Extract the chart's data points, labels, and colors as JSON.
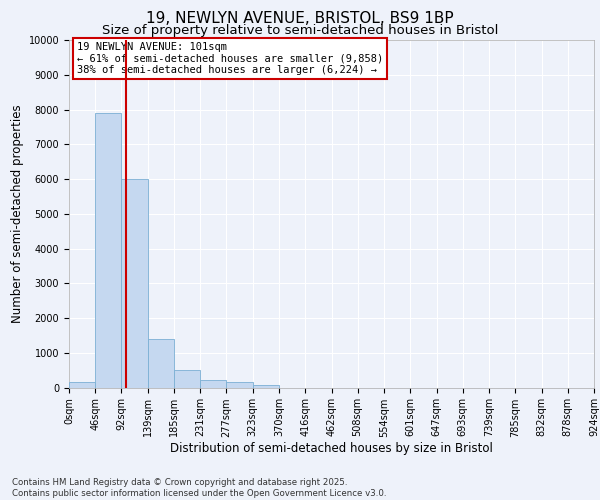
{
  "title_line1": "19, NEWLYN AVENUE, BRISTOL, BS9 1BP",
  "title_line2": "Size of property relative to semi-detached houses in Bristol",
  "xlabel": "Distribution of semi-detached houses by size in Bristol",
  "ylabel": "Number of semi-detached properties",
  "annotation_title": "19 NEWLYN AVENUE: 101sqm",
  "annotation_line1": "← 61% of semi-detached houses are smaller (9,858)",
  "annotation_line2": "38% of semi-detached houses are larger (6,224) →",
  "footer_line1": "Contains HM Land Registry data © Crown copyright and database right 2025.",
  "footer_line2": "Contains public sector information licensed under the Open Government Licence v3.0.",
  "bar_edges": [
    0,
    46,
    92,
    139,
    185,
    231,
    277,
    323,
    370,
    416,
    462,
    508,
    554,
    601,
    647,
    693,
    739,
    785,
    832,
    878,
    924
  ],
  "bar_heights": [
    150,
    7900,
    6000,
    1400,
    500,
    230,
    150,
    80,
    0,
    0,
    0,
    0,
    0,
    0,
    0,
    0,
    0,
    0,
    0,
    0
  ],
  "bar_color": "#C5D8F0",
  "bar_edge_color": "#7BAFD4",
  "property_line_x": 101,
  "property_line_color": "#CC0000",
  "ylim": [
    0,
    10000
  ],
  "yticks": [
    0,
    1000,
    2000,
    3000,
    4000,
    5000,
    6000,
    7000,
    8000,
    9000,
    10000
  ],
  "x_tick_labels": [
    "0sqm",
    "46sqm",
    "92sqm",
    "139sqm",
    "185sqm",
    "231sqm",
    "277sqm",
    "323sqm",
    "370sqm",
    "416sqm",
    "462sqm",
    "508sqm",
    "554sqm",
    "601sqm",
    "647sqm",
    "693sqm",
    "739sqm",
    "785sqm",
    "832sqm",
    "878sqm",
    "924sqm"
  ],
  "background_color": "#EEF2FA",
  "grid_color": "#FFFFFF",
  "annotation_box_color": "#CC0000",
  "title_fontsize": 11,
  "subtitle_fontsize": 9.5,
  "axis_label_fontsize": 8.5,
  "tick_fontsize": 7,
  "annotation_fontsize": 7.5,
  "footer_fontsize": 6.2
}
